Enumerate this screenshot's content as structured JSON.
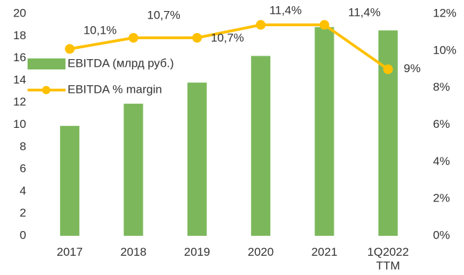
{
  "chart_data": {
    "type": "bar",
    "categories": [
      "2017",
      "2018",
      "2019",
      "2020",
      "2021",
      "1Q2022\nTTM"
    ],
    "series": [
      {
        "name": "EBITDA (млрд руб.)",
        "type": "bar",
        "color": "#7cb85b",
        "axis": "y",
        "values": [
          9.9,
          11.9,
          13.8,
          16.2,
          18.8,
          18.5
        ]
      },
      {
        "name": "EBITDA % margin",
        "type": "line",
        "color": "#ffc000",
        "axis": "y2",
        "values": [
          10.1,
          10.7,
          10.7,
          11.4,
          11.4,
          9
        ],
        "value_labels": [
          "10,1%",
          "10,7%",
          "10,7%",
          "11,4%",
          "11,4%",
          "9%"
        ]
      }
    ],
    "ylim": [
      0,
      20
    ],
    "yticks": [
      0,
      2,
      4,
      6,
      8,
      10,
      12,
      14,
      16,
      18,
      20
    ],
    "y2lim": [
      0,
      12
    ],
    "y2ticks": [
      {
        "value": 0,
        "label": "0%"
      },
      {
        "value": 2,
        "label": "2%"
      },
      {
        "value": 4,
        "label": "4%"
      },
      {
        "value": 6,
        "label": "6%"
      },
      {
        "value": 8,
        "label": "8%"
      },
      {
        "value": 10,
        "label": "10%"
      },
      {
        "value": 12,
        "label": "12%"
      }
    ],
    "legend": "upper left",
    "grid": false
  }
}
